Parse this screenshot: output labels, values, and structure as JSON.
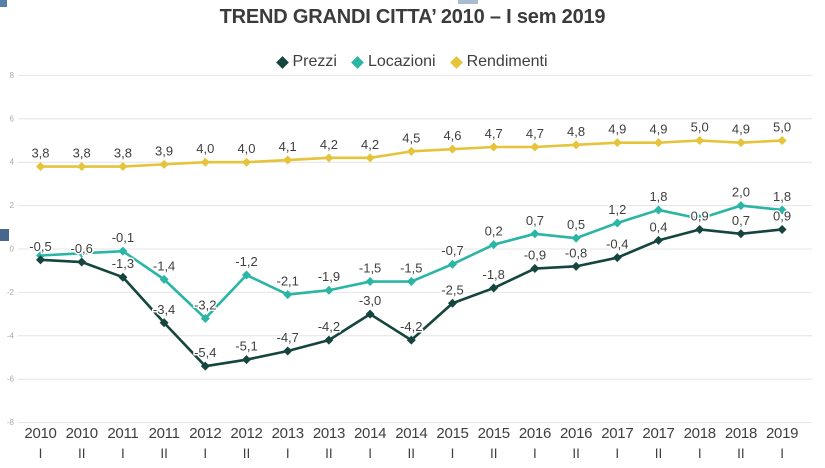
{
  "title": "TREND GRANDI CITTA’ 2010 – I sem 2019",
  "chart_data": {
    "type": "line",
    "title": "TREND GRANDI CITTA’ 2010 – I sem 2019",
    "legend_position": "top",
    "grid": true,
    "decimal_separator": ",",
    "categories": [
      {
        "year": "2010",
        "sem": "I"
      },
      {
        "year": "2010",
        "sem": "II"
      },
      {
        "year": "2011",
        "sem": "I"
      },
      {
        "year": "2011",
        "sem": "II"
      },
      {
        "year": "2012",
        "sem": "I"
      },
      {
        "year": "2012",
        "sem": "II"
      },
      {
        "year": "2013",
        "sem": "I"
      },
      {
        "year": "2013",
        "sem": "II"
      },
      {
        "year": "2014",
        "sem": "I"
      },
      {
        "year": "2014",
        "sem": "II"
      },
      {
        "year": "2015",
        "sem": "I"
      },
      {
        "year": "2015",
        "sem": "II"
      },
      {
        "year": "2016",
        "sem": "I"
      },
      {
        "year": "2016",
        "sem": "II"
      },
      {
        "year": "2017",
        "sem": "I"
      },
      {
        "year": "2017",
        "sem": "II"
      },
      {
        "year": "2018",
        "sem": "I"
      },
      {
        "year": "2018",
        "sem": "II"
      },
      {
        "year": "2019",
        "sem": "I"
      }
    ],
    "y_axis": {
      "min": -8,
      "max": 8,
      "ticks": [
        8,
        6,
        4,
        2,
        0,
        -2,
        -4,
        -6,
        -8
      ]
    },
    "series": [
      {
        "name": "Prezzi",
        "color": "#15453e",
        "values": [
          -0.5,
          -0.6,
          -1.3,
          -3.4,
          -5.4,
          -5.1,
          -4.7,
          -4.2,
          -3.0,
          -4.2,
          -2.5,
          -1.8,
          -0.9,
          -0.8,
          -0.4,
          0.4,
          0.9,
          0.7,
          0.9
        ],
        "labels": [
          "-0,5",
          "-0,6",
          "-1,3",
          "-3,4",
          "-5,4",
          "-5,1",
          "-4,7",
          "-4,2",
          "-3,0",
          "-4,2",
          "-2,5",
          "-1,8",
          "-0,9",
          "-0,8",
          "-0,4",
          "0,4",
          "0,9",
          "0,7",
          "0,9"
        ]
      },
      {
        "name": "Locazioni",
        "color": "#2ab5a5",
        "values": [
          -0.3,
          -0.2,
          -0.1,
          -1.4,
          -3.2,
          -1.2,
          -2.1,
          -1.9,
          -1.5,
          -1.5,
          -0.7,
          0.2,
          0.7,
          0.5,
          1.2,
          1.8,
          1.4,
          2.0,
          1.8
        ],
        "labels": [
          "",
          "",
          "-0,1",
          "-1,4",
          "-3,2",
          "-1,2",
          "-2,1",
          "-1,9",
          "-1,5",
          "-1,5",
          "-0,7",
          "0,2",
          "0,7",
          "0,5",
          "1,2",
          "1,8",
          "",
          "2,0",
          "1,8"
        ]
      },
      {
        "name": "Rendimenti",
        "color": "#e5c439",
        "values": [
          3.8,
          3.8,
          3.8,
          3.9,
          4.0,
          4.0,
          4.1,
          4.2,
          4.2,
          4.5,
          4.6,
          4.7,
          4.7,
          4.8,
          4.9,
          4.9,
          5.0,
          4.9,
          5.0
        ],
        "labels": [
          "3,8",
          "3,8",
          "3,8",
          "3,9",
          "4,0",
          "4,0",
          "4,1",
          "4,2",
          "4,2",
          "4,5",
          "4,6",
          "4,7",
          "4,7",
          "4,8",
          "4,9",
          "4,9",
          "5,0",
          "4,9",
          "5,0"
        ]
      }
    ],
    "style_colors": {
      "text": "#3f3f3f",
      "gridline": "#e4e4e4",
      "y_tick_text": "#a9a9a9",
      "background": "#ffffff"
    }
  },
  "artifacts": {
    "top_left_square_color": "#5580a8",
    "top_dash_color": "#a8bbcf",
    "left_square_color": "#47688c"
  }
}
